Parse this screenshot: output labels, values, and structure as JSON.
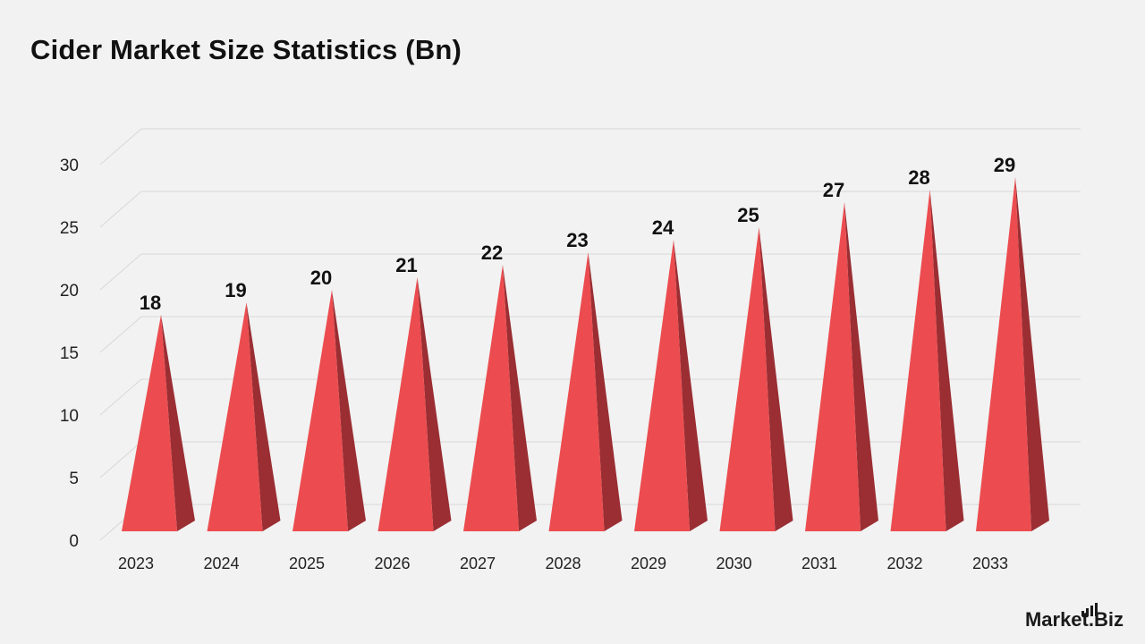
{
  "title": "Cider Market Size Statistics (Bn)",
  "brand": {
    "name_part1": "Market",
    "name_part2": ".Biz"
  },
  "colors": {
    "bar_front": "#ec4c4f",
    "bar_side": "#9a2e33",
    "grid": "#d8d8d8",
    "background": "#f2f2f2"
  },
  "chart_data": {
    "type": "bar",
    "categories": [
      "2023",
      "2024",
      "2025",
      "2026",
      "2027",
      "2028",
      "2029",
      "2030",
      "2031",
      "2032",
      "2033"
    ],
    "values": [
      18,
      19,
      20,
      21,
      22,
      23,
      24,
      25,
      27,
      28,
      29
    ],
    "data_labels": [
      "18",
      "19",
      "20",
      "21",
      "22",
      "23",
      "24",
      "25",
      "27",
      "28",
      "29"
    ],
    "title": "Cider Market Size Statistics (Bn)",
    "xlabel": "",
    "ylabel": "",
    "ylim": [
      0,
      30
    ],
    "yticks": [
      0,
      5,
      10,
      15,
      20,
      25,
      30
    ],
    "ytick_labels": [
      "0",
      "5",
      "10",
      "15",
      "20",
      "25",
      "30"
    ],
    "bar_shape": "pyramid-3d",
    "grid": true,
    "legend": "none"
  }
}
